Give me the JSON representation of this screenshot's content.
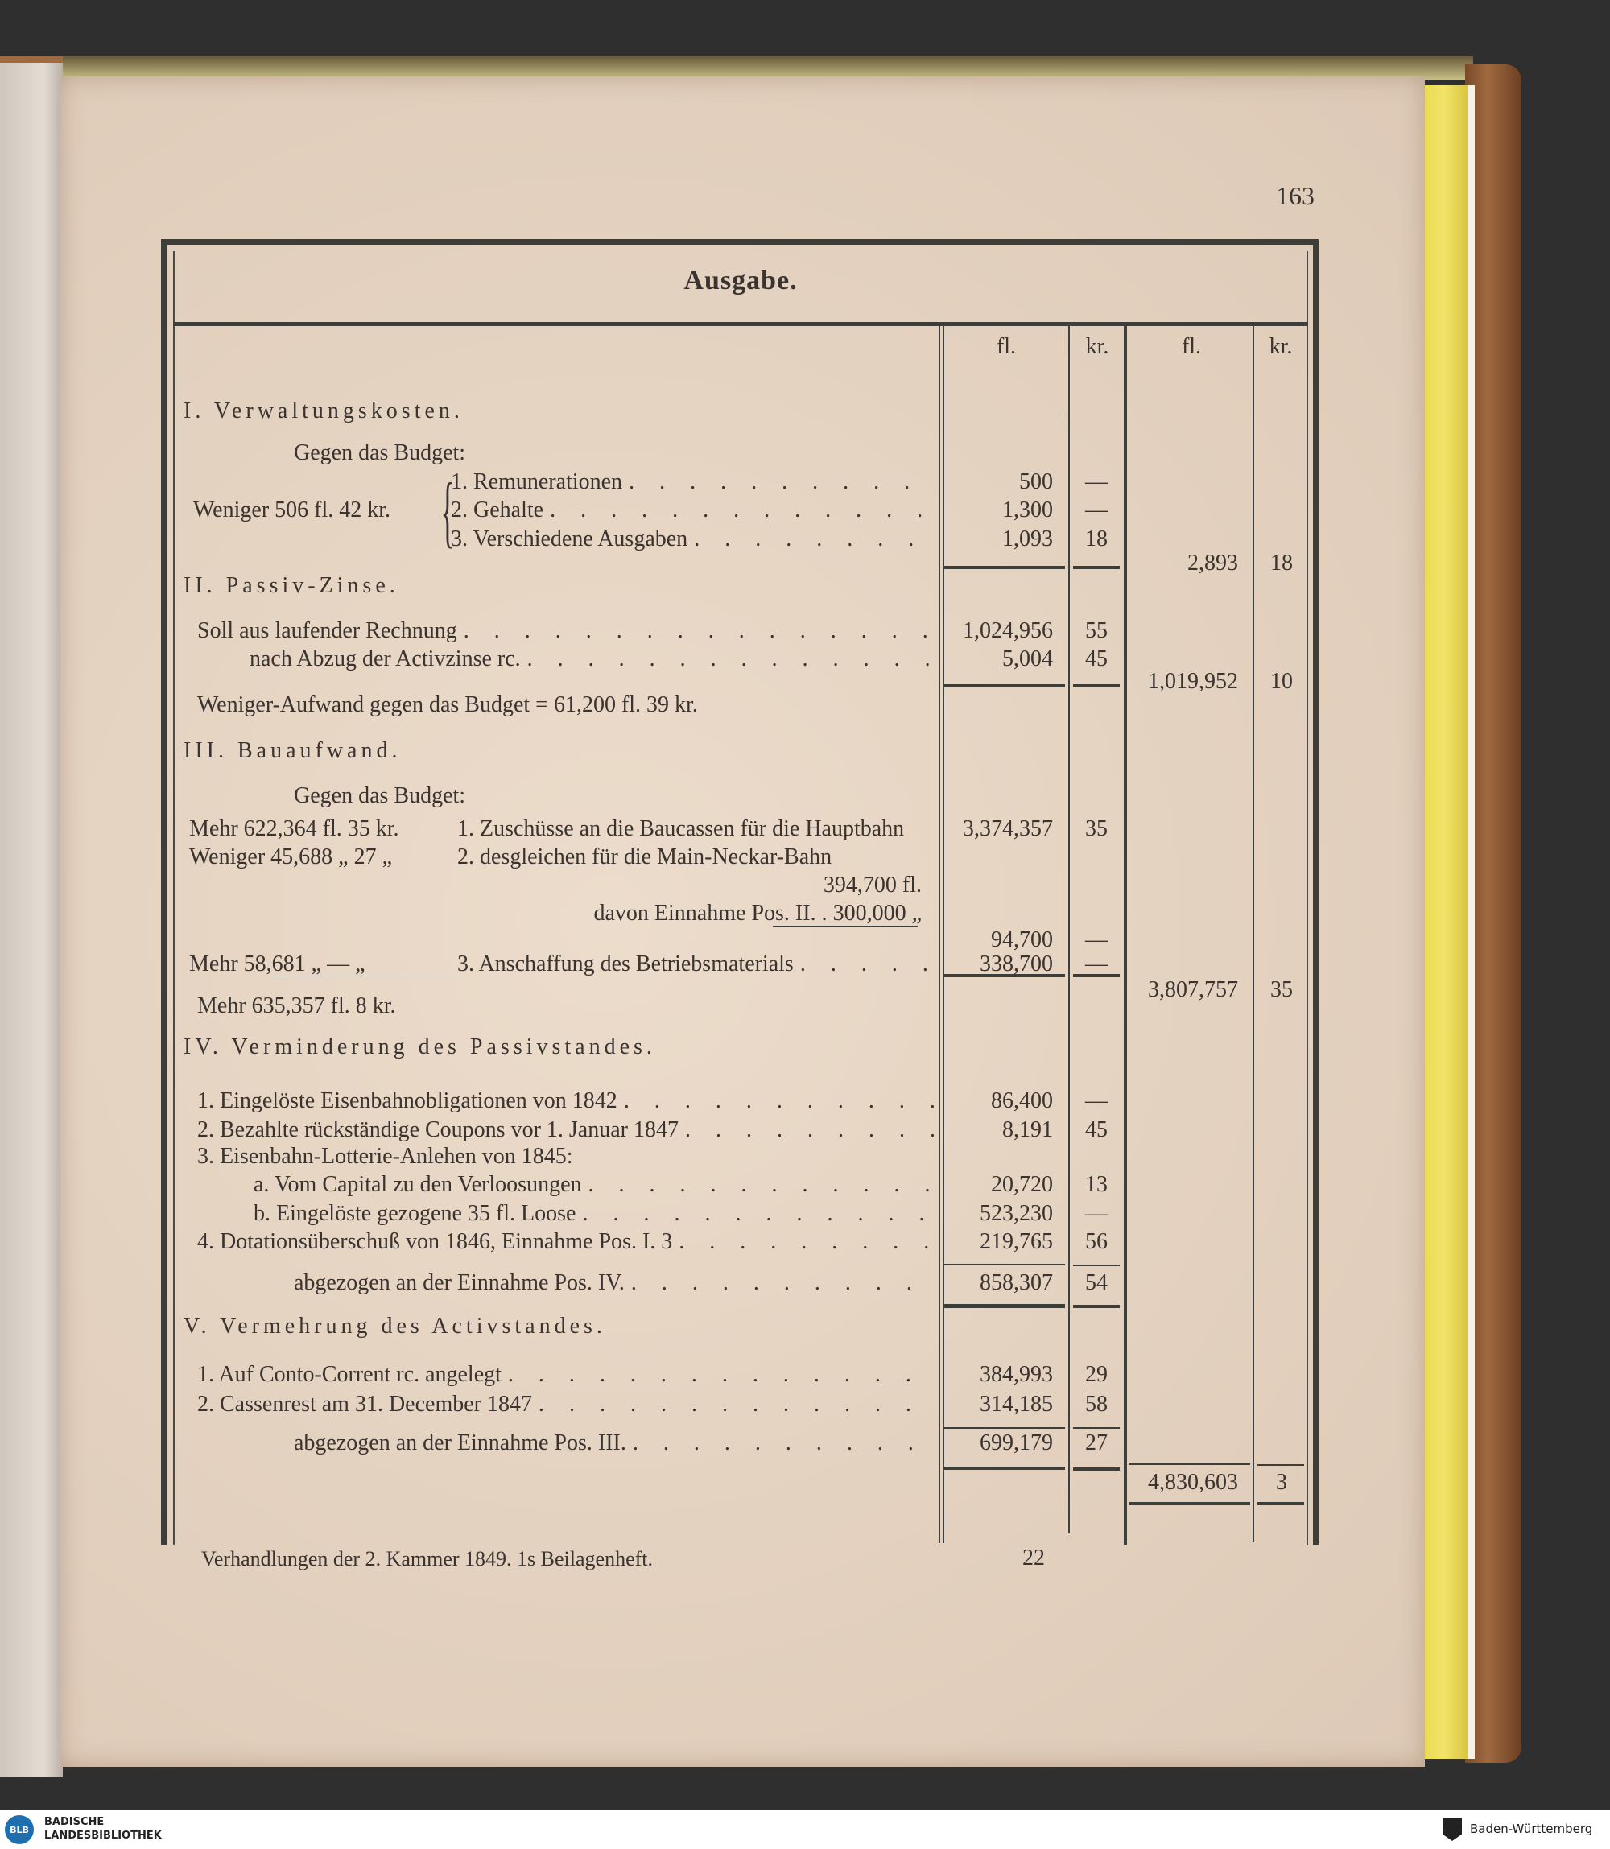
{
  "page_number": "163",
  "title": "Ausgabe.",
  "column_headers": {
    "fl": "fl.",
    "kr": "kr.",
    "total_fl": "fl.",
    "total_kr": "kr."
  },
  "rows": [
    {
      "type": "heading",
      "text": "I. Verwaltungskosten."
    },
    {
      "type": "text",
      "text": "Gegen das Budget:"
    },
    {
      "type": "item",
      "label": "1. Remunerationen",
      "fl": "500",
      "kr": "—"
    },
    {
      "type": "item",
      "label": "2. Gehalte",
      "fl": "1,300",
      "kr": "—",
      "left": "Weniger 506 fl. 42 kr."
    },
    {
      "type": "item",
      "label": "3. Verschiedene Ausgaben",
      "fl": "1,093",
      "kr": "18"
    },
    {
      "type": "total",
      "total_fl": "2,893",
      "total_kr": "18"
    },
    {
      "type": "heading",
      "text": "II. Passiv-Zinse."
    },
    {
      "type": "item",
      "label": "Soll aus laufender Rechnung",
      "fl": "1,024,956",
      "kr": "55"
    },
    {
      "type": "item",
      "label": "nach Abzug der Activzinse rc.",
      "fl": "5,004",
      "kr": "45"
    },
    {
      "type": "total",
      "total_fl": "1,019,952",
      "total_kr": "10"
    },
    {
      "type": "text",
      "text": "Weniger-Aufwand gegen das Budget = 61,200 fl. 39 kr."
    },
    {
      "type": "heading",
      "text": "III. Bauaufwand."
    },
    {
      "type": "text",
      "text": "Gegen das Budget:"
    },
    {
      "type": "item",
      "left": "Mehr  622,364 fl. 35 kr.",
      "label": "1. Zuschüsse an die Baucassen für die Hauptbahn",
      "fl": "3,374,357",
      "kr": "35",
      "noleader": true
    },
    {
      "type": "item",
      "left": "Weniger 45,688 „ 27 „",
      "label": "2. desgleichen für die Main-Neckar-Bahn",
      "noleader": true
    },
    {
      "type": "right",
      "text": "394,700 fl."
    },
    {
      "type": "right",
      "text": "davon Einnahme Pos. II.  .  300,000 „"
    },
    {
      "type": "item",
      "fl": "94,700",
      "kr": "—"
    },
    {
      "type": "item",
      "left": "Mehr   58,681 „ — „",
      "label": "3. Anschaffung des Betriebsmaterials",
      "fl": "338,700",
      "kr": "—"
    },
    {
      "type": "total",
      "total_fl": "3,807,757",
      "total_kr": "35"
    },
    {
      "type": "text",
      "text": "Mehr  635,357 fl.  8 kr."
    },
    {
      "type": "heading",
      "text": "IV. Verminderung des Passivstandes."
    },
    {
      "type": "item",
      "label": "1. Eingelöste Eisenbahnobligationen von 1842",
      "fl": "86,400",
      "kr": "—"
    },
    {
      "type": "item",
      "label": "2. Bezahlte rückständige Coupons vor 1. Januar 1847",
      "fl": "8,191",
      "kr": "45"
    },
    {
      "type": "text",
      "text": "3. Eisenbahn-Lotterie-Anlehen von 1845:"
    },
    {
      "type": "item",
      "label": "a. Vom Capital zu den Verloosungen",
      "fl": "20,720",
      "kr": "13",
      "indent": true
    },
    {
      "type": "item",
      "label": "b. Eingelöste gezogene 35 fl. Loose",
      "fl": "523,230",
      "kr": "—",
      "indent": true
    },
    {
      "type": "item",
      "label": "4. Dotationsüberschuß von 1846, Einnahme Pos. I. 3",
      "fl": "219,765",
      "kr": "56"
    },
    {
      "type": "item",
      "label": "abgezogen an der Einnahme Pos. IV.",
      "fl": "858,307",
      "kr": "54",
      "indent2": true
    },
    {
      "type": "heading",
      "text": "V. Vermehrung des Activstandes."
    },
    {
      "type": "item",
      "label": "1. Auf Conto-Corrent rc. angelegt",
      "fl": "384,993",
      "kr": "29"
    },
    {
      "type": "item",
      "label": "2. Cassenrest am 31. December 1847",
      "fl": "314,185",
      "kr": "58"
    },
    {
      "type": "item",
      "label": "abgezogen an der Einnahme Pos. III.",
      "fl": "699,179",
      "kr": "27",
      "indent2": true
    },
    {
      "type": "total",
      "total_fl": "4,830,603",
      "total_kr": "3"
    }
  ],
  "footer": {
    "left": "Verhandlungen der 2. Kammer 1849. 1s Beilagenheft.",
    "signature": "22"
  },
  "bottom_bar": {
    "library_logo": "BLB",
    "library_name_1": "BADISCHE",
    "library_name_2": "LANDESBIBLIOTHEK",
    "state": "Baden-Württemberg"
  }
}
